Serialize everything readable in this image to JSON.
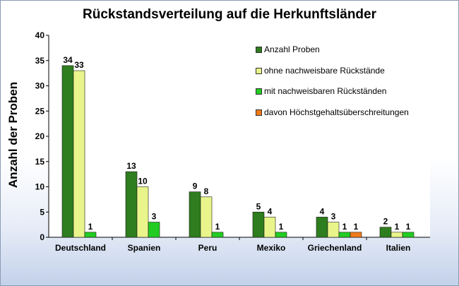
{
  "chart_data": {
    "type": "bar",
    "title": "Rückstandsverteilung  auf die Herkunftsländer",
    "xlabel": "",
    "ylabel": "Anzahl der Proben",
    "ylim": [
      0,
      40
    ],
    "yticks": [
      0,
      5,
      10,
      15,
      20,
      25,
      30,
      35,
      40
    ],
    "categories": [
      "Deutschland",
      "Spanien",
      "Peru",
      "Mexiko",
      "Griechenland",
      "Italien"
    ],
    "series": [
      {
        "name": "Anzahl Proben",
        "color": "#2e7d1e",
        "values": [
          34,
          13,
          9,
          5,
          4,
          2
        ]
      },
      {
        "name": "ohne nachweisbare Rückstände",
        "color": "#e9f58a",
        "values": [
          33,
          10,
          8,
          4,
          3,
          1
        ]
      },
      {
        "name": "mit nachweisbaren Rückständen",
        "color": "#22cc22",
        "values": [
          1,
          3,
          1,
          1,
          1,
          1
        ]
      },
      {
        "name": "davon Höchstgehaltsüberschreitungen",
        "color": "#f07a1a",
        "values": [
          null,
          null,
          null,
          null,
          1,
          null
        ]
      }
    ],
    "legend_position": "top-right",
    "grid": false
  }
}
